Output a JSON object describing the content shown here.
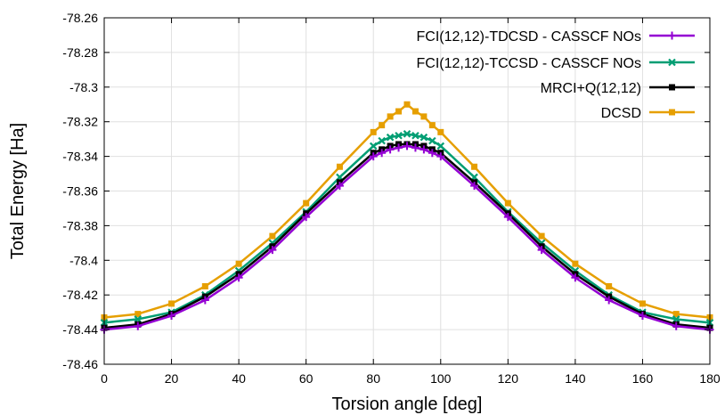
{
  "chart_data": {
    "type": "line",
    "title": "",
    "xlabel": "Torsion angle [deg]",
    "ylabel": "Total Energy [Ha]",
    "xlim": [
      0,
      180
    ],
    "ylim": [
      -78.46,
      -78.26
    ],
    "grid": true,
    "legend_position": "top-right",
    "xticks": [
      0,
      20,
      40,
      60,
      80,
      100,
      120,
      140,
      160,
      180
    ],
    "yticks": [
      -78.46,
      -78.44,
      -78.42,
      -78.4,
      -78.38,
      -78.36,
      -78.34,
      -78.32,
      -78.3,
      -78.28,
      -78.26
    ],
    "xtick_labels": [
      "0",
      "20",
      "40",
      "60",
      "80",
      "100",
      "120",
      "140",
      "160",
      "180"
    ],
    "ytick_labels": [
      "-78.46",
      "-78.44",
      "-78.42",
      "-78.4",
      "-78.38",
      "-78.36",
      "-78.34",
      "-78.32",
      "-78.3",
      "-78.28",
      "-78.26"
    ],
    "x": [
      0,
      10,
      20,
      30,
      40,
      50,
      60,
      70,
      80,
      82.5,
      85,
      87.5,
      90,
      92.5,
      95,
      97.5,
      100,
      110,
      120,
      130,
      140,
      150,
      160,
      170,
      180
    ],
    "series": [
      {
        "name": "FCI(12,12)-TDCSD - CASSCF NOs",
        "color": "#9400d3",
        "marker": "plus",
        "values": [
          -78.44,
          -78.438,
          -78.432,
          -78.423,
          -78.41,
          -78.394,
          -78.375,
          -78.357,
          -78.34,
          -78.338,
          -78.336,
          -78.335,
          -78.334,
          -78.335,
          -78.336,
          -78.338,
          -78.34,
          -78.357,
          -78.375,
          -78.394,
          -78.41,
          -78.423,
          -78.432,
          -78.438,
          -78.44
        ]
      },
      {
        "name": "FCI(12,12)-TCCSD - CASSCF NOs",
        "color": "#009e73",
        "marker": "cross",
        "values": [
          -78.436,
          -78.434,
          -78.43,
          -78.42,
          -78.406,
          -78.39,
          -78.372,
          -78.352,
          -78.334,
          -78.331,
          -78.329,
          -78.328,
          -78.327,
          -78.328,
          -78.329,
          -78.331,
          -78.334,
          -78.352,
          -78.372,
          -78.39,
          -78.406,
          -78.42,
          -78.43,
          -78.434,
          -78.436
        ]
      },
      {
        "name": "MRCI+Q(12,12)",
        "color": "#000000",
        "marker": "square",
        "values": [
          -78.439,
          -78.437,
          -78.431,
          -78.421,
          -78.408,
          -78.392,
          -78.373,
          -78.355,
          -78.338,
          -78.336,
          -78.334,
          -78.333,
          -78.333,
          -78.333,
          -78.334,
          -78.336,
          -78.338,
          -78.355,
          -78.373,
          -78.392,
          -78.408,
          -78.421,
          -78.431,
          -78.437,
          -78.439
        ]
      },
      {
        "name": "DCSD",
        "color": "#e69f00",
        "marker": "square",
        "values": [
          -78.433,
          -78.431,
          -78.425,
          -78.415,
          -78.402,
          -78.386,
          -78.367,
          -78.346,
          -78.326,
          -78.322,
          -78.317,
          -78.314,
          -78.31,
          -78.314,
          -78.317,
          -78.322,
          -78.326,
          -78.346,
          -78.367,
          -78.386,
          -78.402,
          -78.415,
          -78.425,
          -78.431,
          -78.433
        ]
      }
    ]
  }
}
